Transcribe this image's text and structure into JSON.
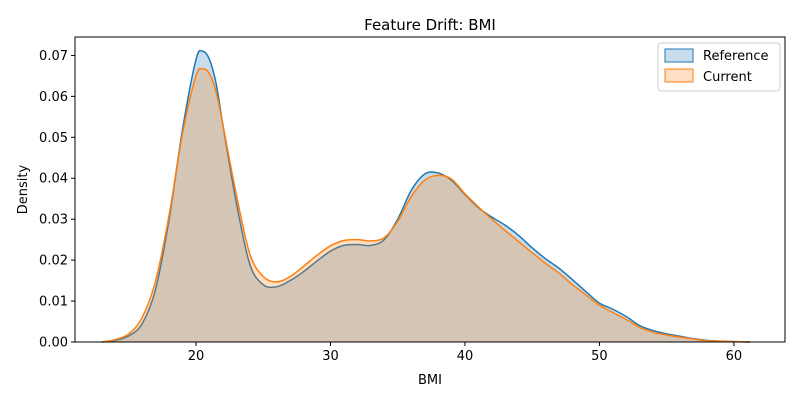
{
  "chart_data": {
    "type": "area",
    "title": "Feature Drift: BMI",
    "xlabel": "BMI",
    "ylabel": "Density",
    "xlim": [
      11,
      63.8
    ],
    "ylim": [
      0,
      0.0745
    ],
    "x_ticks": [
      20,
      30,
      40,
      50,
      60
    ],
    "y_ticks": [
      0.0,
      0.01,
      0.02,
      0.03,
      0.04,
      0.05,
      0.06,
      0.07
    ],
    "y_tick_labels": [
      "0.00",
      "0.01",
      "0.02",
      "0.03",
      "0.04",
      "0.05",
      "0.06",
      "0.07"
    ],
    "grid": false,
    "legend_position": "top-right",
    "series": [
      {
        "name": "Reference",
        "line_color": "#1f77b4",
        "fill_color": "#1f77b4",
        "x": [
          13,
          14,
          15,
          16,
          17,
          18,
          19,
          20,
          20.5,
          21,
          21.5,
          22,
          23,
          24,
          25,
          26,
          27,
          28,
          29,
          30,
          31,
          32,
          33,
          34,
          35,
          36,
          37,
          38,
          39,
          40,
          41,
          42,
          43,
          44,
          45,
          46,
          47,
          48,
          49,
          50,
          51,
          52,
          53,
          54,
          55,
          56,
          57,
          58,
          59,
          60,
          61.2
        ],
        "y": [
          0.0,
          0.0004,
          0.0015,
          0.0045,
          0.013,
          0.03,
          0.052,
          0.069,
          0.071,
          0.069,
          0.063,
          0.053,
          0.034,
          0.019,
          0.014,
          0.0135,
          0.015,
          0.0172,
          0.0198,
          0.0222,
          0.0236,
          0.0238,
          0.0236,
          0.025,
          0.03,
          0.037,
          0.041,
          0.0413,
          0.0395,
          0.036,
          0.0328,
          0.0305,
          0.0285,
          0.026,
          0.023,
          0.0203,
          0.018,
          0.0152,
          0.0123,
          0.0095,
          0.008,
          0.0062,
          0.004,
          0.0028,
          0.002,
          0.0014,
          0.0008,
          0.0004,
          0.0002,
          0.0001,
          0.0
        ]
      },
      {
        "name": "Current",
        "line_color": "#ff7f0e",
        "fill_color": "#ff7f0e",
        "x": [
          13,
          14,
          15,
          16,
          17,
          18,
          19,
          20,
          20.5,
          21,
          21.5,
          22,
          23,
          24,
          25,
          26,
          27,
          28,
          29,
          30,
          31,
          32,
          33,
          34,
          35,
          36,
          37,
          38,
          39,
          40,
          41,
          42,
          43,
          44,
          45,
          46,
          47,
          48,
          49,
          50,
          51,
          52,
          53,
          54,
          55,
          56,
          57,
          58,
          59,
          60,
          61.2
        ],
        "y": [
          0.0,
          0.0006,
          0.002,
          0.006,
          0.015,
          0.031,
          0.051,
          0.065,
          0.0667,
          0.0655,
          0.061,
          0.053,
          0.036,
          0.0215,
          0.016,
          0.0147,
          0.016,
          0.0185,
          0.0212,
          0.0235,
          0.0248,
          0.025,
          0.0247,
          0.0255,
          0.0295,
          0.0355,
          0.0395,
          0.0407,
          0.0398,
          0.0362,
          0.033,
          0.03,
          0.0272,
          0.0245,
          0.0218,
          0.0192,
          0.0168,
          0.014,
          0.0115,
          0.009,
          0.0072,
          0.0055,
          0.0036,
          0.0024,
          0.0017,
          0.0012,
          0.0007,
          0.0003,
          0.0002,
          0.0001,
          0.0
        ]
      }
    ]
  }
}
